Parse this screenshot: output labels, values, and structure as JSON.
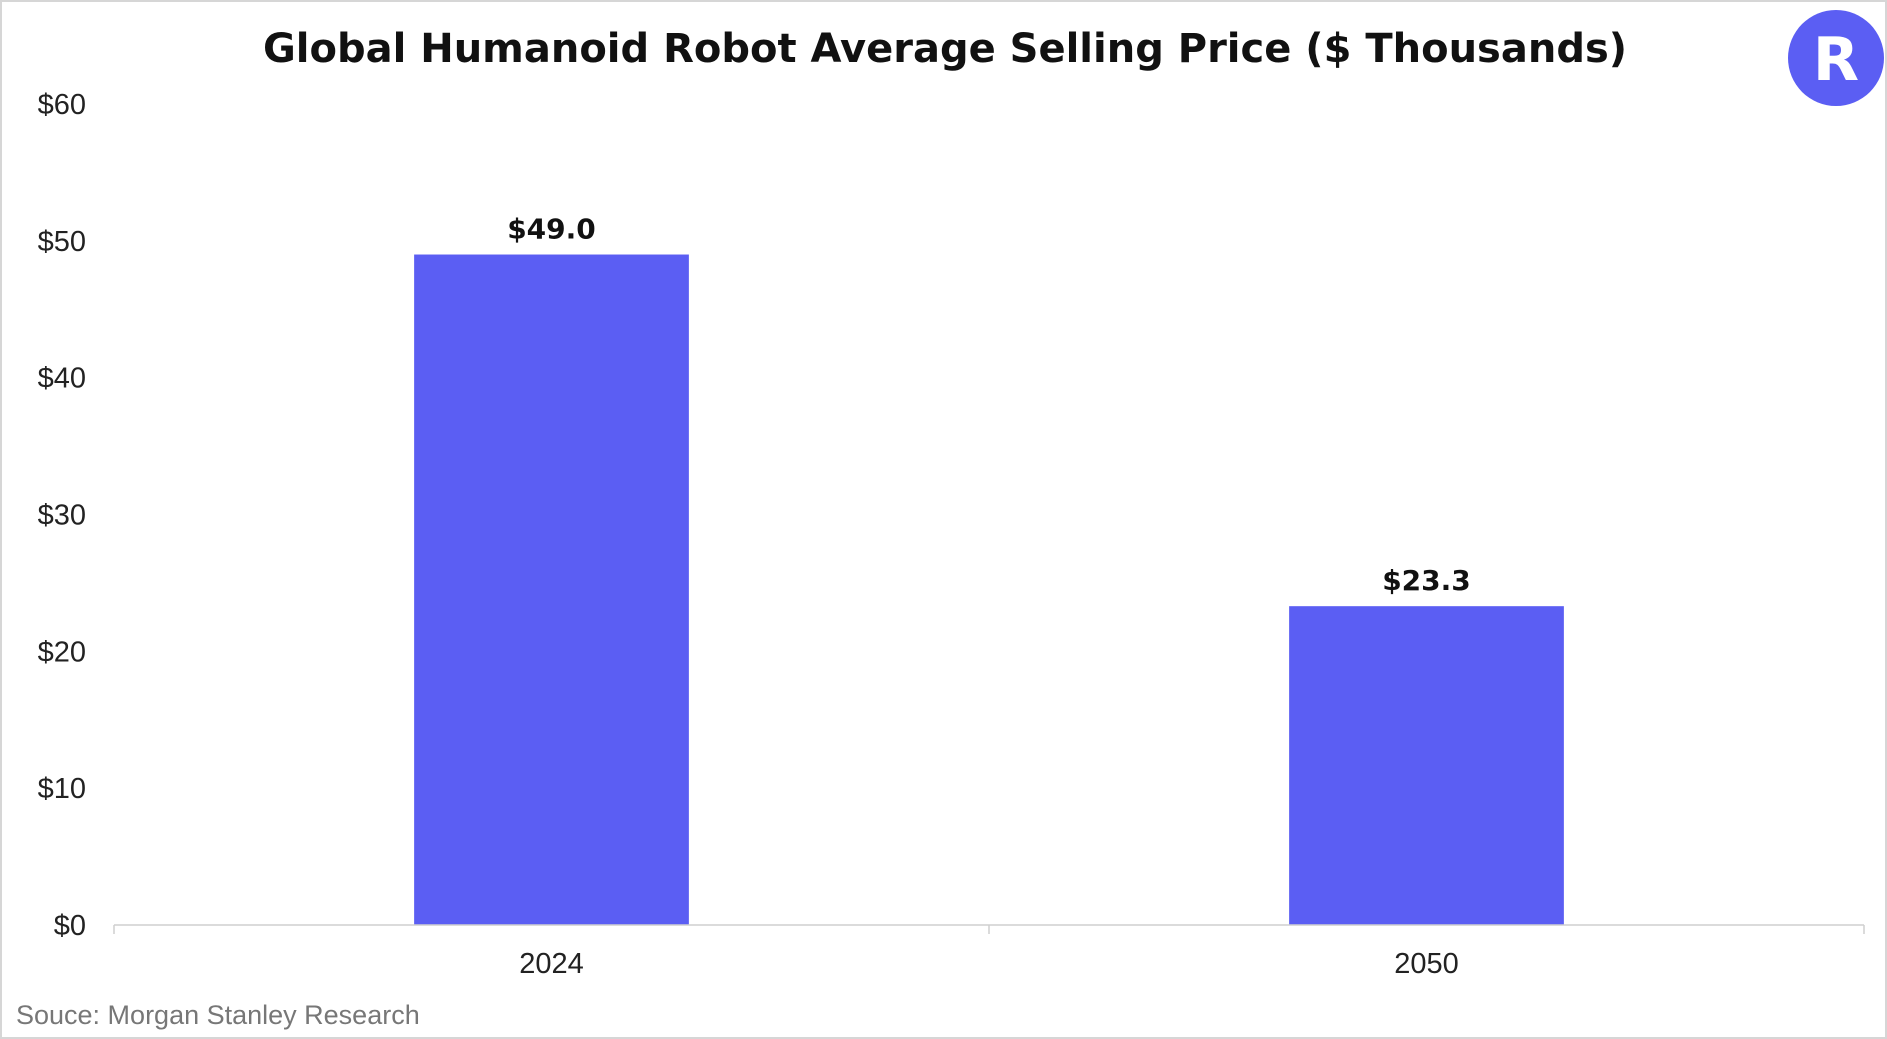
{
  "chart_data": {
    "type": "bar",
    "title": "Global Humanoid Robot Average Selling Price ($ Thousands)",
    "categories": [
      "2024",
      "2050"
    ],
    "values": [
      49.0,
      23.3
    ],
    "data_labels": [
      "$49.0",
      "$23.3"
    ],
    "y_ticks": [
      "$0",
      "$10",
      "$20",
      "$30",
      "$40",
      "$50",
      "$60"
    ],
    "ylim": [
      0,
      60
    ],
    "xlabel": "",
    "ylabel": "",
    "grid": false,
    "legend": "none",
    "bar_color": "#5b5ef3"
  },
  "source": "Souce: Morgan Stanley Research",
  "logo": {
    "letter": "R",
    "color": "#5b5ef3"
  }
}
